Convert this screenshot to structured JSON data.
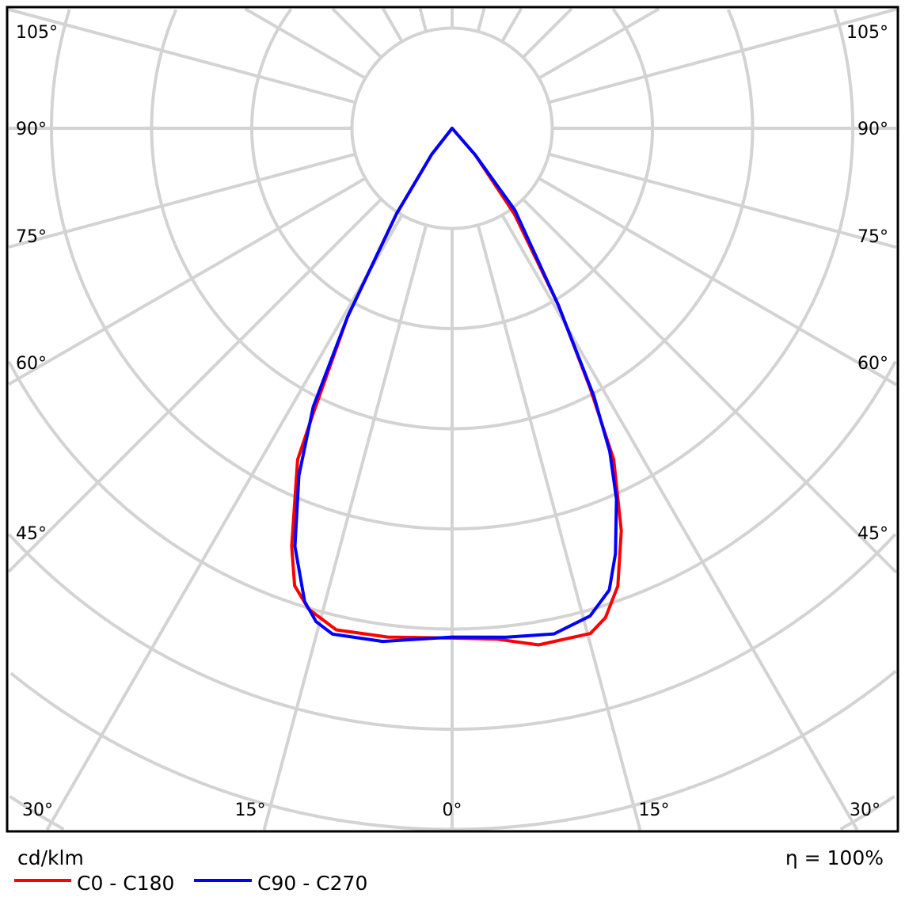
{
  "chart_data": {
    "type": "polar",
    "title": "",
    "unit_label": "cd/klm",
    "efficiency_label": "η = 100%",
    "radial_grid_step": 1,
    "angle_grid_step_deg": 15,
    "grid": true,
    "legend_position": "bottom-left",
    "angle_labels": {
      "left": [
        "105°",
        "90°",
        "75°",
        "60°",
        "45°"
      ],
      "right": [
        "105°",
        "90°",
        "75°",
        "60°",
        "45°"
      ],
      "bottom": [
        "30°",
        "15°",
        "0°",
        "15°",
        "30°"
      ]
    },
    "series": [
      {
        "name": "C0 - C180",
        "color": "#ff0000",
        "points": [
          [
            -42,
            0.0
          ],
          [
            -38,
            0.33
          ],
          [
            -33,
            1.02
          ],
          [
            -29,
            2.15
          ],
          [
            -26,
            3.15
          ],
          [
            -25,
            3.65
          ],
          [
            -21,
            4.47
          ],
          [
            -19,
            4.83
          ],
          [
            -16.6,
            5.01
          ],
          [
            -13,
            5.14
          ],
          [
            -7.2,
            5.12
          ],
          [
            0,
            5.09
          ],
          [
            5,
            5.12
          ],
          [
            9.5,
            5.23
          ],
          [
            15.3,
            5.23
          ],
          [
            17.4,
            5.12
          ],
          [
            19.9,
            4.86
          ],
          [
            22.8,
            4.36
          ],
          [
            26,
            3.68
          ],
          [
            28,
            2.93
          ],
          [
            31,
            2.06
          ],
          [
            36,
            1.06
          ],
          [
            41,
            0.35
          ],
          [
            44,
            0.0
          ]
        ]
      },
      {
        "name": "C90 - C270",
        "color": "#0000ff",
        "points": [
          [
            -42,
            0.0
          ],
          [
            -38,
            0.33
          ],
          [
            -33,
            1.02
          ],
          [
            -29,
            2.15
          ],
          [
            -26.5,
            3.11
          ],
          [
            -23.8,
            3.79
          ],
          [
            -20.6,
            4.46
          ],
          [
            -17.3,
            4.95
          ],
          [
            -15.4,
            5.11
          ],
          [
            -13.3,
            5.19
          ],
          [
            -7.7,
            5.17
          ],
          [
            0,
            5.08
          ],
          [
            6.1,
            5.11
          ],
          [
            11.4,
            5.15
          ],
          [
            15.8,
            5.06
          ],
          [
            18.8,
            4.87
          ],
          [
            21,
            4.55
          ],
          [
            23.9,
            4.05
          ],
          [
            26,
            3.59
          ],
          [
            27.9,
            3.02
          ],
          [
            31,
            2.06
          ],
          [
            37.5,
            1.03
          ],
          [
            41,
            0.35
          ],
          [
            44,
            0.0
          ]
        ]
      }
    ]
  }
}
